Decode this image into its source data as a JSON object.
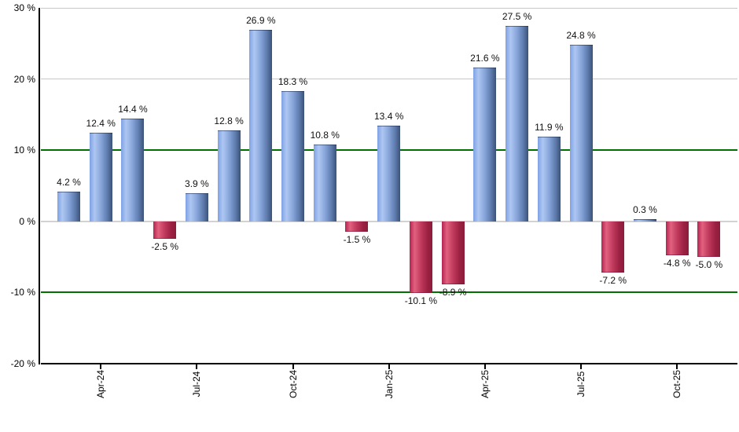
{
  "chart_data": {
    "type": "bar",
    "title": "",
    "unit": "%",
    "ylim": [
      -20,
      30
    ],
    "grid": "horizontal",
    "legend": null,
    "bars": [
      {
        "value": 4.2,
        "label": "4.2 %"
      },
      {
        "value": 12.4,
        "label": "12.4 %"
      },
      {
        "value": 14.4,
        "label": "14.4 %"
      },
      {
        "value": -2.5,
        "label": "-2.5 %"
      },
      {
        "value": 3.9,
        "label": "3.9 %"
      },
      {
        "value": 12.8,
        "label": "12.8 %"
      },
      {
        "value": 26.9,
        "label": "26.9 %"
      },
      {
        "value": 18.3,
        "label": "18.3 %"
      },
      {
        "value": 10.8,
        "label": "10.8 %"
      },
      {
        "value": -1.5,
        "label": "-1.5 %"
      },
      {
        "value": 13.4,
        "label": "13.4 %"
      },
      {
        "value": -10.1,
        "label": "-10.1 %"
      },
      {
        "value": -8.9,
        "label": "-8.9 %"
      },
      {
        "value": 21.6,
        "label": "21.6 %"
      },
      {
        "value": 27.5,
        "label": "27.5 %"
      },
      {
        "value": 11.9,
        "label": "11.9 %"
      },
      {
        "value": 24.8,
        "label": "24.8 %"
      },
      {
        "value": -7.2,
        "label": "-7.2 %"
      },
      {
        "value": 0.3,
        "label": "0.3 %"
      },
      {
        "value": -4.8,
        "label": "-4.8 %"
      },
      {
        "value": -5.0,
        "label": "-5.0 %"
      }
    ],
    "x_ticks": [
      {
        "label": "Apr-24",
        "bar_index": 1
      },
      {
        "label": "Jul-24",
        "bar_index": 4
      },
      {
        "label": "Oct-24",
        "bar_index": 7
      },
      {
        "label": "Jan-25",
        "bar_index": 10
      },
      {
        "label": "Apr-25",
        "bar_index": 13
      },
      {
        "label": "Jul-25",
        "bar_index": 16
      },
      {
        "label": "Oct-25",
        "bar_index": 19
      }
    ],
    "y_ticks": [
      {
        "label": "30 %",
        "value": 30,
        "line": "gray"
      },
      {
        "label": "20 %",
        "value": 20,
        "line": "gray"
      },
      {
        "label": "10 %",
        "value": 10,
        "line": "green"
      },
      {
        "label": "0 %",
        "value": 0,
        "line": "zero"
      },
      {
        "label": "-10 %",
        "value": -10,
        "line": "green"
      },
      {
        "label": "-20 %",
        "value": -20,
        "line": "axis"
      }
    ],
    "colors": {
      "positive_gradient": [
        "#7fa1e4",
        "#aec7f2",
        "#88a5da",
        "#5e7bae",
        "#3b5377"
      ],
      "negative_gradient": [
        "#b22550",
        "#e2617f",
        "#c03a5d",
        "#9c2143",
        "#8c1c3a"
      ],
      "green_line": "#007000",
      "gridline": "#c8c8c8",
      "axis": "#000000",
      "background": "#ffffff",
      "label_text": "#111111"
    }
  }
}
